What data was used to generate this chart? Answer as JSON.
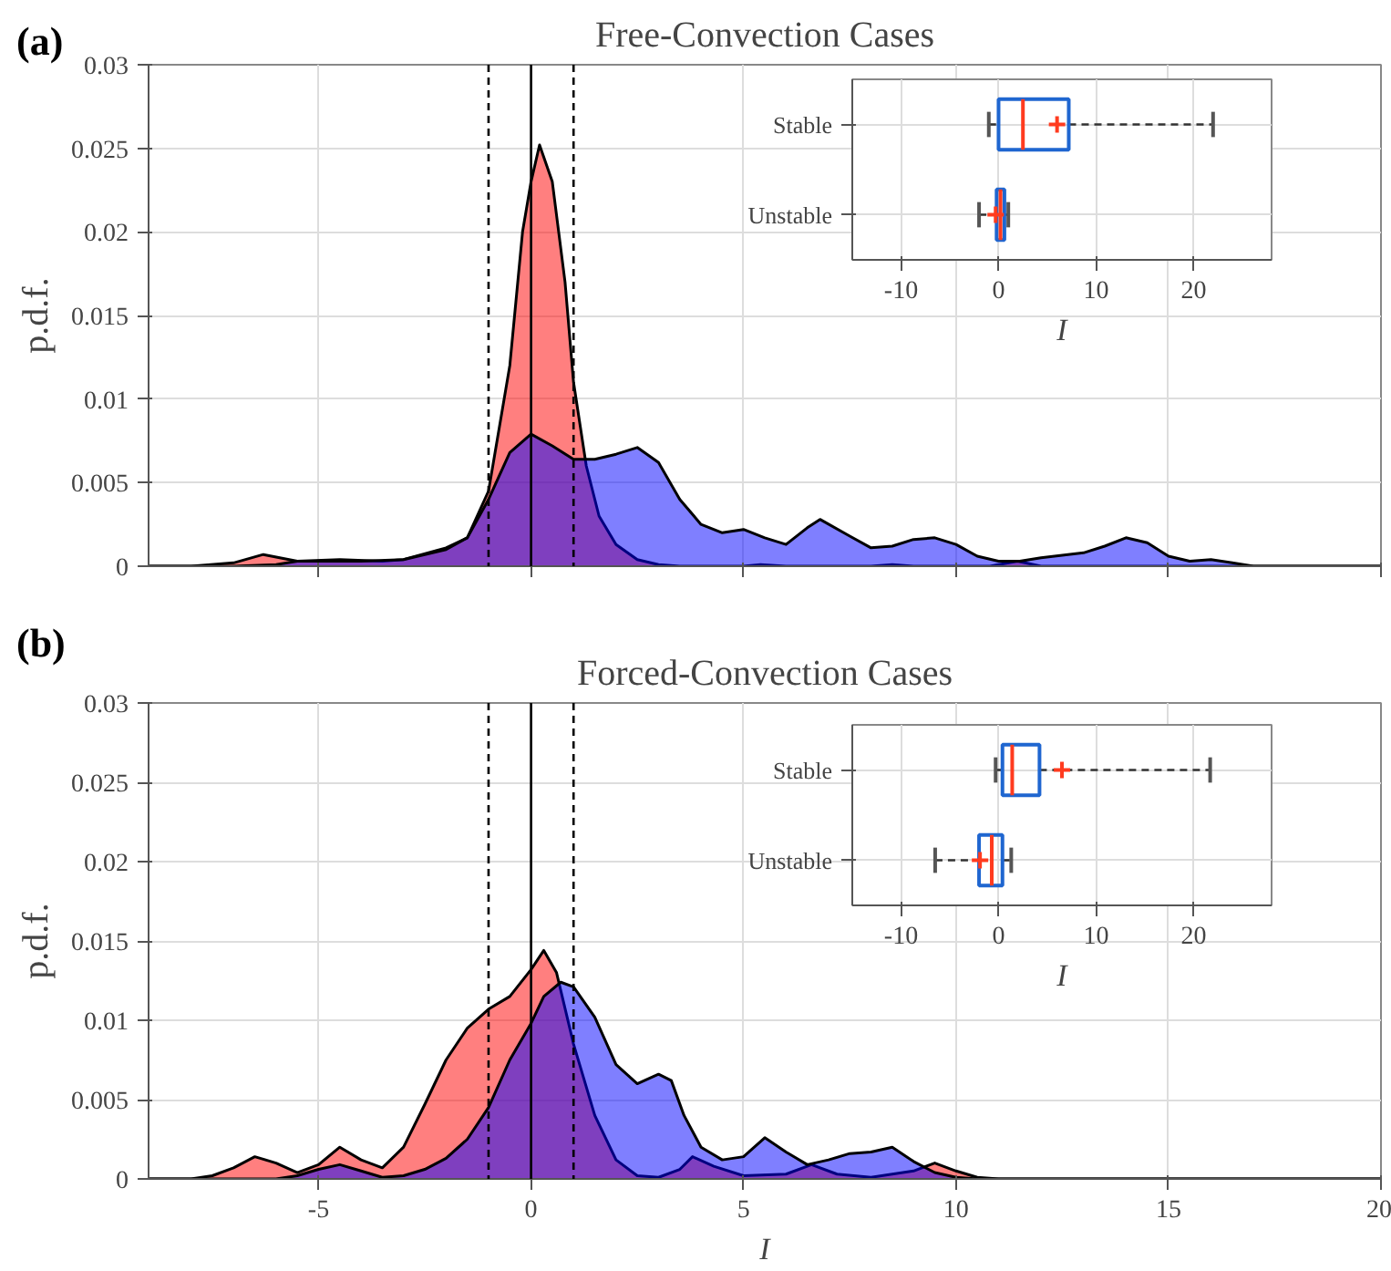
{
  "chart_data": [
    {
      "type": "area",
      "title": "Free-Convection Cases",
      "ylabel": "p.d.f.",
      "annotations": [
        "(a)"
      ],
      "xlim": [
        -9,
        20
      ],
      "xticks": [
        -5,
        0,
        5,
        10,
        15,
        20
      ],
      "ylim": [
        0,
        0.03
      ],
      "yticks": [
        0,
        0.005,
        0.01,
        0.015,
        0.02,
        0.025,
        0.03
      ],
      "tick_labels": "y",
      "grid": true,
      "ref_lines": [
        {
          "axis": "x",
          "value": -1,
          "line_style": "dashed",
          "color": "#000000"
        },
        {
          "axis": "x",
          "value": 0,
          "line_style": "solid",
          "color": "#000000"
        },
        {
          "axis": "x",
          "value": 1,
          "line_style": "dashed",
          "color": "#000000"
        }
      ],
      "series": [
        {
          "color": "#ff0000",
          "x": [
            -9,
            -8,
            -7,
            -6.3,
            -5.5,
            -4.5,
            -3.5,
            -3,
            -2,
            -1.5,
            -1,
            -0.5,
            -0.2,
            0,
            0.2,
            0.5,
            0.8,
            1,
            1.3,
            1.6,
            2,
            2.5,
            3,
            3.5,
            5,
            5.4,
            6,
            8,
            8.5,
            9,
            10.8,
            11.45,
            12,
            20
          ],
          "values": [
            0,
            0,
            0.0002,
            0.0007,
            0.0003,
            0.0004,
            0.0003,
            0.0004,
            0.0011,
            0.0017,
            0.0045,
            0.012,
            0.02,
            0.023,
            0.0252,
            0.023,
            0.017,
            0.011,
            0.006,
            0.003,
            0.0013,
            0.0004,
            0.0001,
            0,
            0,
            0.0001,
            0,
            0,
            0.0001,
            0,
            0,
            0.0003,
            0,
            0
          ]
        },
        {
          "color": "#0000ff",
          "x": [
            -9,
            -7,
            -6,
            -5.5,
            -4.5,
            -4,
            -3,
            -2,
            -1.5,
            -1,
            -0.5,
            0,
            0.5,
            1,
            1.5,
            2,
            2.5,
            3,
            3.5,
            4,
            4.5,
            5,
            5.5,
            6,
            6.5,
            6.8,
            7.5,
            8,
            8.5,
            9,
            9.5,
            10,
            10.5,
            11,
            11.5,
            12,
            13,
            13.5,
            14,
            14.5,
            15,
            15.5,
            16,
            16.5,
            17,
            20
          ],
          "values": [
            0,
            0,
            0.0001,
            0.0003,
            0.0003,
            0.0003,
            0.0004,
            0.001,
            0.0017,
            0.004,
            0.0068,
            0.0079,
            0.0072,
            0.0064,
            0.0064,
            0.0067,
            0.0071,
            0.0062,
            0.004,
            0.0025,
            0.002,
            0.0022,
            0.0017,
            0.0013,
            0.0023,
            0.0028,
            0.0018,
            0.0011,
            0.0012,
            0.0016,
            0.0017,
            0.0013,
            0.0006,
            0.0003,
            0.0003,
            0.0005,
            0.0008,
            0.0012,
            0.0017,
            0.0014,
            0.0006,
            0.0003,
            0.0004,
            0.0002,
            0,
            0
          ]
        }
      ]
    },
    {
      "type": "box",
      "orientation": "horizontal",
      "categories": [
        "Stable",
        "Unstable"
      ],
      "xlabel": "I",
      "xlim": [
        -15,
        28
      ],
      "xticks": [
        -10,
        0,
        10,
        20
      ],
      "grid": true,
      "color": "#1f66d0",
      "boxes": [
        {
          "low": -1,
          "q1": 0,
          "median": 2.5,
          "q3": 7.2,
          "high": 22,
          "mean": 6
        },
        {
          "low": -2,
          "q1": -0.2,
          "median": 0.2,
          "q3": 0.6,
          "high": 1,
          "mean": -0.3
        }
      ]
    },
    {
      "type": "area",
      "title": "Forced-Convection Cases",
      "xlabel": "I",
      "ylabel": "p.d.f.",
      "annotations": [
        "(b)"
      ],
      "xlim": [
        -9,
        20
      ],
      "xticks": [
        -5,
        0,
        5,
        10,
        15,
        20
      ],
      "ylim": [
        0,
        0.03
      ],
      "yticks": [
        0,
        0.005,
        0.01,
        0.015,
        0.02,
        0.025,
        0.03
      ],
      "grid": true,
      "ref_lines": [
        {
          "axis": "x",
          "value": -1,
          "line_style": "dashed",
          "color": "#000000"
        },
        {
          "axis": "x",
          "value": 0,
          "line_style": "solid",
          "color": "#000000"
        },
        {
          "axis": "x",
          "value": 1,
          "line_style": "dashed",
          "color": "#000000"
        }
      ],
      "series": [
        {
          "color": "#ff0000",
          "x": [
            -9,
            -8,
            -7.5,
            -7,
            -6.5,
            -6,
            -5.5,
            -5,
            -4.5,
            -4,
            -3.5,
            -3,
            -2.5,
            -2,
            -1.5,
            -1,
            -0.5,
            0,
            0.3,
            0.6,
            1,
            1.5,
            2,
            2.5,
            3,
            3.5,
            3.8,
            4.3,
            5,
            6,
            6.6,
            7.2,
            8,
            9,
            9.5,
            10,
            10.5,
            11,
            20
          ],
          "values": [
            0,
            0,
            0.0002,
            0.0007,
            0.0014,
            0.001,
            0.0004,
            0.0009,
            0.002,
            0.0012,
            0.0007,
            0.002,
            0.0047,
            0.0075,
            0.0095,
            0.0107,
            0.0115,
            0.0132,
            0.0144,
            0.013,
            0.0085,
            0.004,
            0.0012,
            0.0002,
            0.0001,
            0.0006,
            0.0014,
            0.0008,
            0.0002,
            0.0003,
            0.0009,
            0.0003,
            0.0001,
            0.0005,
            0.001,
            0.0005,
            0.0001,
            0,
            0
          ]
        },
        {
          "color": "#0000ff",
          "x": [
            -9,
            -6,
            -5.5,
            -5,
            -4.5,
            -4,
            -3.5,
            -3,
            -2.5,
            -2,
            -1.5,
            -1,
            -0.5,
            0,
            0.3,
            0.7,
            1,
            1.5,
            2,
            2.5,
            3,
            3.3,
            3.6,
            4,
            4.5,
            5,
            5.5,
            6,
            6.5,
            7,
            7.5,
            8,
            8.5,
            9,
            9.5,
            10,
            10.5,
            20
          ],
          "values": [
            0,
            0,
            0.0002,
            0.0006,
            0.0009,
            0.0005,
            0.0001,
            0.0002,
            0.0006,
            0.0013,
            0.0025,
            0.0045,
            0.0075,
            0.0098,
            0.0115,
            0.0124,
            0.0121,
            0.0102,
            0.0072,
            0.006,
            0.0066,
            0.0062,
            0.004,
            0.002,
            0.0012,
            0.0014,
            0.0026,
            0.0017,
            0.0009,
            0.0012,
            0.0016,
            0.0017,
            0.002,
            0.0011,
            0.0004,
            0.0001,
            0,
            0
          ]
        }
      ]
    },
    {
      "type": "box",
      "orientation": "horizontal",
      "categories": [
        "Stable",
        "Unstable"
      ],
      "xlabel": "I",
      "xlim": [
        -15,
        28
      ],
      "xticks": [
        -10,
        0,
        10,
        20
      ],
      "grid": true,
      "color": "#1f66d0",
      "boxes": [
        {
          "low": -0.3,
          "q1": 0.4,
          "median": 1.4,
          "q3": 4.2,
          "high": 21.7,
          "mean": 6.5
        },
        {
          "low": -6.5,
          "q1": -2,
          "median": -0.7,
          "q3": 0.4,
          "high": 1.3,
          "mean": -1.9
        }
      ]
    }
  ]
}
